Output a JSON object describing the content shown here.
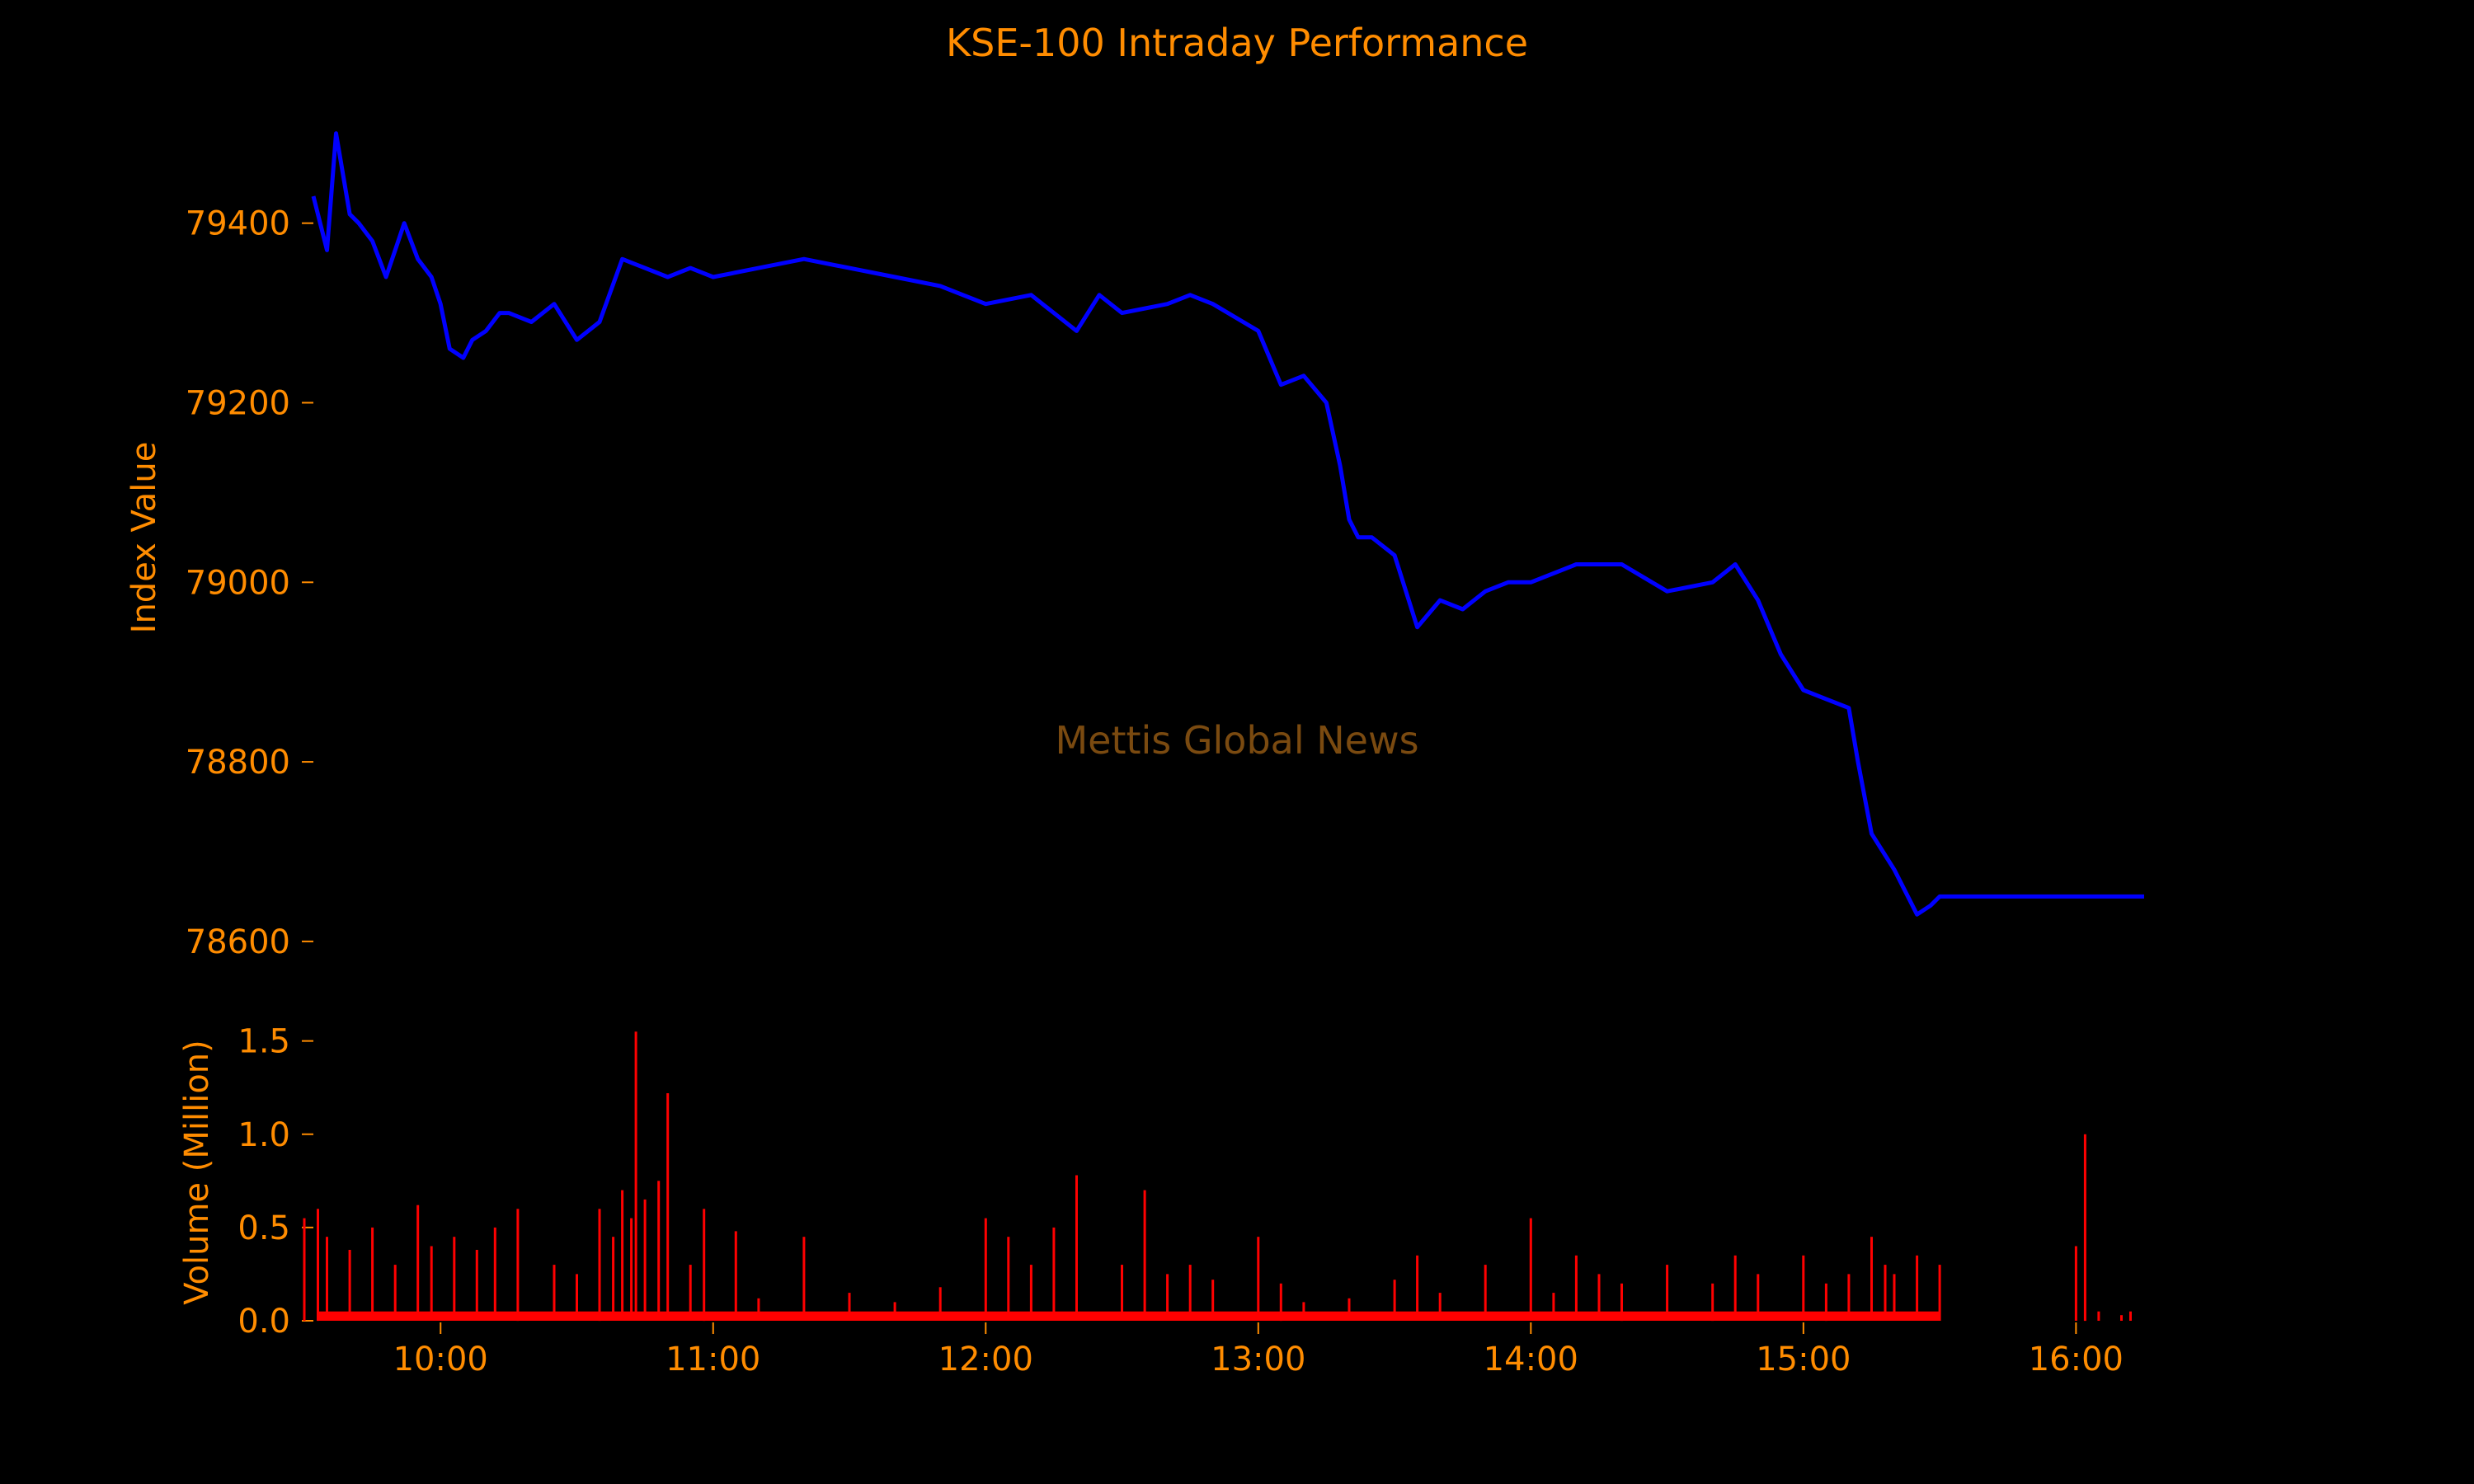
{
  "chart_data": {
    "type": "line",
    "title": "KSE-100 Intraday Performance",
    "watermark": "Mettis Global News",
    "colors": {
      "background": "#000000",
      "text": "#ff8c00",
      "index_line": "#0000ff",
      "volume_bars": "#ff0000",
      "watermark": "#7a4a10"
    },
    "x_axis": {
      "type": "time",
      "range": [
        "09:32",
        "16:15"
      ],
      "tick_labels": [
        "10:00",
        "11:00",
        "12:00",
        "13:00",
        "14:00",
        "15:00",
        "16:00"
      ]
    },
    "index_panel": {
      "ylabel": "Index Value",
      "ylim": [
        78565,
        79520
      ],
      "ticks": [
        78600,
        78800,
        79000,
        79200,
        79400
      ],
      "series": [
        {
          "x": [
            "09:32",
            "09:35",
            "09:37",
            "09:40",
            "09:42",
            "09:45",
            "09:48",
            "09:50",
            "09:52",
            "09:55",
            "09:58",
            "10:00",
            "10:02",
            "10:05",
            "10:07",
            "10:10",
            "10:13",
            "10:15",
            "10:20",
            "10:25",
            "10:30",
            "10:35",
            "10:40",
            "10:45",
            "10:50",
            "10:55",
            "11:00",
            "11:10",
            "11:20",
            "11:30",
            "11:40",
            "11:50",
            "12:00",
            "12:10",
            "12:15",
            "12:20",
            "12:25",
            "12:30",
            "12:40",
            "12:45",
            "12:50",
            "13:00",
            "13:05",
            "13:10",
            "13:15",
            "13:18",
            "13:20",
            "13:22",
            "13:25",
            "13:30",
            "13:35",
            "13:40",
            "13:45",
            "13:50",
            "13:55",
            "14:00",
            "14:10",
            "14:20",
            "14:30",
            "14:40",
            "14:45",
            "14:50",
            "14:55",
            "15:00",
            "15:05",
            "15:10",
            "15:12",
            "15:15",
            "15:20",
            "15:25",
            "15:28",
            "15:30",
            "15:35",
            "16:00",
            "16:15"
          ],
          "y": [
            79430,
            79370,
            79500,
            79410,
            79400,
            79380,
            79340,
            79370,
            79400,
            79360,
            79340,
            79310,
            79260,
            79250,
            79270,
            79280,
            79300,
            79300,
            79290,
            79310,
            79270,
            79290,
            79360,
            79350,
            79340,
            79350,
            79340,
            79350,
            79360,
            79350,
            79340,
            79330,
            79310,
            79320,
            79300,
            79280,
            79320,
            79300,
            79310,
            79320,
            79310,
            79280,
            79220,
            79230,
            79200,
            79130,
            79070,
            79050,
            79050,
            79030,
            78950,
            78980,
            78970,
            78990,
            79000,
            79000,
            79020,
            79020,
            78990,
            79000,
            79020,
            78980,
            78920,
            78880,
            78870,
            78860,
            78800,
            78720,
            78680,
            78630,
            78640,
            78650,
            78650,
            78650,
            78650
          ]
        }
      ]
    },
    "volume_panel": {
      "ylabel": "Volume (Million)",
      "ylim": [
        0,
        1.6
      ],
      "ticks": [
        0.0,
        0.5,
        1.0,
        1.5
      ],
      "tick_labels": [
        "0.0",
        "0.5",
        "1.0",
        "1.5"
      ],
      "series": [
        {
          "x": [
            "09:30",
            "09:33",
            "09:35",
            "09:40",
            "09:45",
            "09:50",
            "09:55",
            "09:58",
            "10:03",
            "10:08",
            "10:12",
            "10:17",
            "10:25",
            "10:30",
            "10:35",
            "10:38",
            "10:40",
            "10:42",
            "10:43",
            "10:45",
            "10:48",
            "10:50",
            "10:55",
            "10:58",
            "11:05",
            "11:10",
            "11:20",
            "11:30",
            "11:40",
            "11:50",
            "12:00",
            "12:05",
            "12:10",
            "12:15",
            "12:20",
            "12:30",
            "12:35",
            "12:40",
            "12:45",
            "12:50",
            "13:00",
            "13:05",
            "13:10",
            "13:20",
            "13:30",
            "13:35",
            "13:40",
            "13:50",
            "14:00",
            "14:05",
            "14:10",
            "14:15",
            "14:20",
            "14:30",
            "14:40",
            "14:45",
            "14:50",
            "15:00",
            "15:05",
            "15:10",
            "15:15",
            "15:18",
            "15:20",
            "15:25",
            "15:30",
            "16:00",
            "16:02",
            "16:05",
            "16:10",
            "16:12"
          ],
          "y": [
            0.55,
            0.6,
            0.45,
            0.38,
            0.5,
            0.3,
            0.62,
            0.4,
            0.45,
            0.38,
            0.5,
            0.6,
            0.3,
            0.25,
            0.6,
            0.45,
            0.7,
            0.55,
            1.55,
            0.65,
            0.75,
            1.22,
            0.3,
            0.6,
            0.48,
            0.12,
            0.45,
            0.15,
            0.1,
            0.18,
            0.55,
            0.45,
            0.3,
            0.5,
            0.78,
            0.3,
            0.7,
            0.25,
            0.3,
            0.22,
            0.45,
            0.2,
            0.1,
            0.12,
            0.22,
            0.35,
            0.15,
            0.3,
            0.55,
            0.15,
            0.35,
            0.25,
            0.2,
            0.3,
            0.2,
            0.35,
            0.25,
            0.35,
            0.2,
            0.25,
            0.45,
            0.3,
            0.25,
            0.35,
            0.3,
            0.4,
            1.0,
            0.05,
            0.03,
            0.05
          ]
        }
      ]
    }
  }
}
